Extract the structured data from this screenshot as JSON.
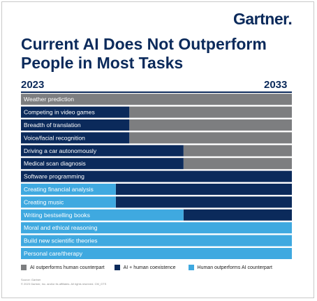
{
  "brand": {
    "name": "Gartner",
    "dot": "."
  },
  "chart_data": {
    "type": "bar",
    "title": "Current AI Does Not Outperform People in Most Tasks",
    "x_start_label": "2023",
    "x_end_label": "2033",
    "xlim": [
      2023,
      2033
    ],
    "categories": [
      "Weather prediction",
      "Competing in video games",
      "Breadth of translation",
      "Voice/facial recognition",
      "Driving a car autonomously",
      "Medical scan diagnosis",
      "Software programming",
      "Creating financial analysis",
      "Creating music",
      "Writing bestselling books",
      "Moral and ethical reasoning",
      "Build new scientific theories",
      "Personal care/therapy"
    ],
    "series": [
      {
        "key": "ai_outperforms",
        "name": "AI outperforms human counterpart",
        "color": "#7d7e80",
        "start": [
          2023,
          2027,
          2027,
          2027,
          2029,
          2029,
          null,
          null,
          null,
          null,
          null,
          null,
          null
        ],
        "end": [
          2033,
          2033,
          2033,
          2033,
          2033,
          2033,
          null,
          null,
          null,
          null,
          null,
          null,
          null
        ]
      },
      {
        "key": "coexistence",
        "name": "AI + human coexistence",
        "color": "#0b2a5b",
        "start": [
          null,
          2023,
          2023,
          2023,
          2023,
          2023,
          2023,
          2026.5,
          2026.5,
          2029,
          null,
          null,
          null
        ],
        "end": [
          null,
          2027,
          2027,
          2027,
          2029,
          2029,
          2033,
          2033,
          2033,
          2033,
          null,
          null,
          null
        ]
      },
      {
        "key": "human_outperforms",
        "name": "Human outperforms AI counterpart",
        "color": "#3fa9e0",
        "start": [
          null,
          null,
          null,
          null,
          null,
          null,
          null,
          2023,
          2023,
          2023,
          2023,
          2023,
          2023
        ],
        "end": [
          null,
          null,
          null,
          null,
          null,
          null,
          null,
          2026.5,
          2026.5,
          2029,
          2033,
          2033,
          2033
        ]
      }
    ],
    "legend_position": "bottom",
    "grid": false
  },
  "footer": {
    "source": "Source: Gartner",
    "copyright": "© 2023 Gartner, Inc. and/or its affiliates. All rights reserved. CM_GTS"
  }
}
